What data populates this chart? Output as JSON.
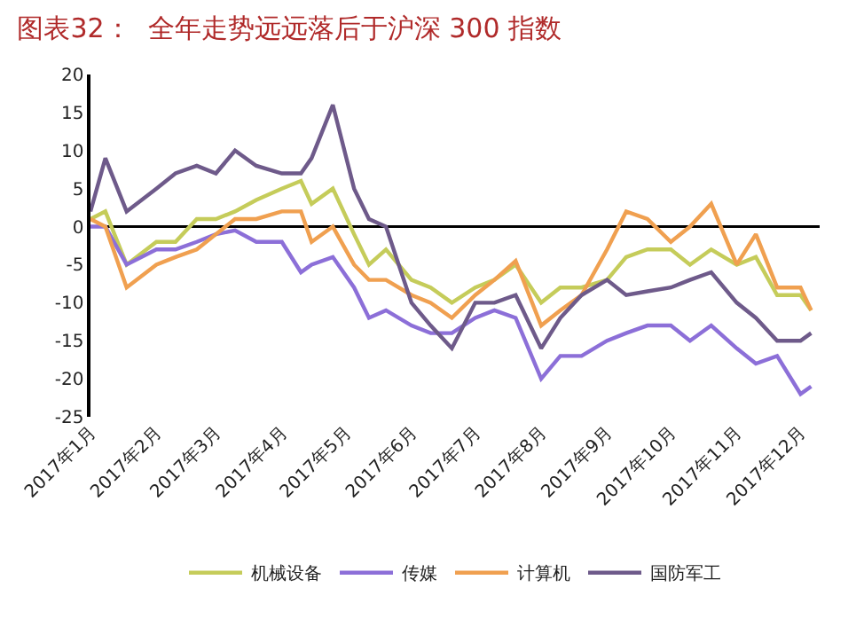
{
  "chart_data": {
    "type": "line",
    "title": "图表32：  全年走势远远落后于沪深 300 指数",
    "x": [
      "2017-01-01",
      "2017-01-08",
      "2017-01-18",
      "2017-02-01",
      "2017-02-10",
      "2017-02-20",
      "2017-03-01",
      "2017-03-10",
      "2017-03-20",
      "2017-04-01",
      "2017-04-10",
      "2017-04-15",
      "2017-04-25",
      "2017-05-05",
      "2017-05-12",
      "2017-05-20",
      "2017-06-01",
      "2017-06-10",
      "2017-06-20",
      "2017-07-01",
      "2017-07-10",
      "2017-07-20",
      "2017-08-01",
      "2017-08-10",
      "2017-08-20",
      "2017-09-01",
      "2017-09-10",
      "2017-09-20",
      "2017-10-01",
      "2017-10-10",
      "2017-10-20",
      "2017-11-01",
      "2017-11-10",
      "2017-11-20",
      "2017-12-01",
      "2017-12-06"
    ],
    "series": [
      {
        "name": "机械设备",
        "color": "#c5cc5a",
        "values": [
          1,
          2,
          -5,
          -2,
          -2,
          1,
          1,
          2,
          3.5,
          5,
          6,
          3,
          5,
          -1,
          -5,
          -3,
          -7,
          -8,
          -10,
          -8,
          -7,
          -5,
          -10,
          -8,
          -8,
          -7,
          -4,
          -3,
          -3,
          -5,
          -3,
          -5,
          -4,
          -9,
          -9,
          -11
        ]
      },
      {
        "name": "传媒",
        "color": "#8c6fd8",
        "values": [
          0,
          0,
          -5,
          -3,
          -3,
          -2,
          -1,
          -0.5,
          -2,
          -2,
          -6,
          -5,
          -4,
          -8,
          -12,
          -11,
          -13,
          -14,
          -14,
          -12,
          -11,
          -12,
          -20,
          -17,
          -17,
          -15,
          -14,
          -13,
          -13,
          -15,
          -13,
          -16,
          -18,
          -17,
          -22,
          -21
        ]
      },
      {
        "name": "计算机",
        "color": "#f0a050",
        "values": [
          1,
          0,
          -8,
          -5,
          -4,
          -3,
          -1,
          1,
          1,
          2,
          2,
          -2,
          0,
          -5,
          -7,
          -7,
          -9,
          -10,
          -12,
          -9,
          -7,
          -4.5,
          -13,
          -11,
          -9,
          -3,
          2,
          1,
          -2,
          0,
          3,
          -5,
          -1,
          -8,
          -8,
          -11
        ]
      },
      {
        "name": "国防军工",
        "color": "#6e5a8a",
        "values": [
          2,
          9,
          2,
          5,
          7,
          8,
          7,
          10,
          8,
          7,
          7,
          9,
          16,
          5,
          1,
          0,
          -10,
          -13,
          -16,
          -10,
          -10,
          -9,
          -16,
          -12,
          -9,
          -7,
          -9,
          -8.5,
          -8,
          -7,
          -6,
          -10,
          -12,
          -15,
          -15,
          -14
        ]
      }
    ],
    "xlim": [
      "2017-01-01",
      "2017-12-10"
    ],
    "xticks": [
      {
        "value": "2017-01-01",
        "label": "2017年1月"
      },
      {
        "value": "2017-02-01",
        "label": "2017年2月"
      },
      {
        "value": "2017-03-01",
        "label": "2017年3月"
      },
      {
        "value": "2017-04-01",
        "label": "2017年4月"
      },
      {
        "value": "2017-05-01",
        "label": "2017年5月"
      },
      {
        "value": "2017-06-01",
        "label": "2017年6月"
      },
      {
        "value": "2017-07-01",
        "label": "2017年7月"
      },
      {
        "value": "2017-08-01",
        "label": "2017年8月"
      },
      {
        "value": "2017-09-01",
        "label": "2017年9月"
      },
      {
        "value": "2017-10-01",
        "label": "2017年10月"
      },
      {
        "value": "2017-11-01",
        "label": "2017年11月"
      },
      {
        "value": "2017-12-01",
        "label": "2017年12月"
      }
    ],
    "ylim": [
      -25,
      20
    ],
    "yticks": [
      -25,
      -20,
      -15,
      -10,
      -5,
      0,
      5,
      10,
      15,
      20
    ],
    "ref_lines": [
      {
        "axis": "y",
        "value": 0,
        "color": "#000000"
      }
    ],
    "grid": false,
    "legend": "bottom",
    "marker": "none",
    "line_style": "solid"
  }
}
